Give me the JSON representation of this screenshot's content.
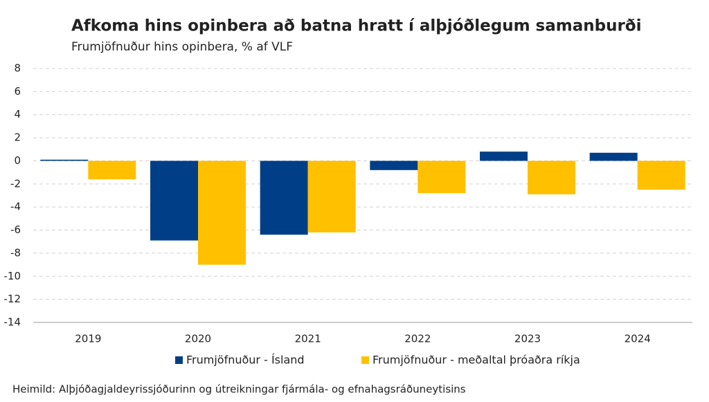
{
  "chart_data": {
    "type": "bar",
    "title": "Afkoma hins opinbera að batna hratt í alþjóðlegum samanburði",
    "subtitle": "Frumjöfnuður hins opinbera, % af VLF",
    "source": "Heimild: Alþjóðagjaldeyrissjóðurinn og útreikningar fjármála- og efnahagsráðuneytisins",
    "categories": [
      "2019",
      "2020",
      "2021",
      "2022",
      "2023",
      "2024"
    ],
    "series": [
      {
        "name": "Frumjöfnuður - Ísland",
        "color": "#003f87",
        "values": [
          0.1,
          -6.9,
          -6.4,
          -0.8,
          0.8,
          0.7
        ]
      },
      {
        "name": "Frumjöfnuður - meðaltal þróaðra ríkja",
        "color": "#ffc000",
        "values": [
          -1.6,
          -9.0,
          -6.2,
          -2.8,
          -2.9,
          -2.5
        ]
      }
    ],
    "ylim": [
      -14,
      8
    ],
    "yticks": [
      -14,
      -12,
      -10,
      -8,
      -6,
      -4,
      -2,
      0,
      2,
      4,
      6,
      8
    ],
    "grid": true
  }
}
